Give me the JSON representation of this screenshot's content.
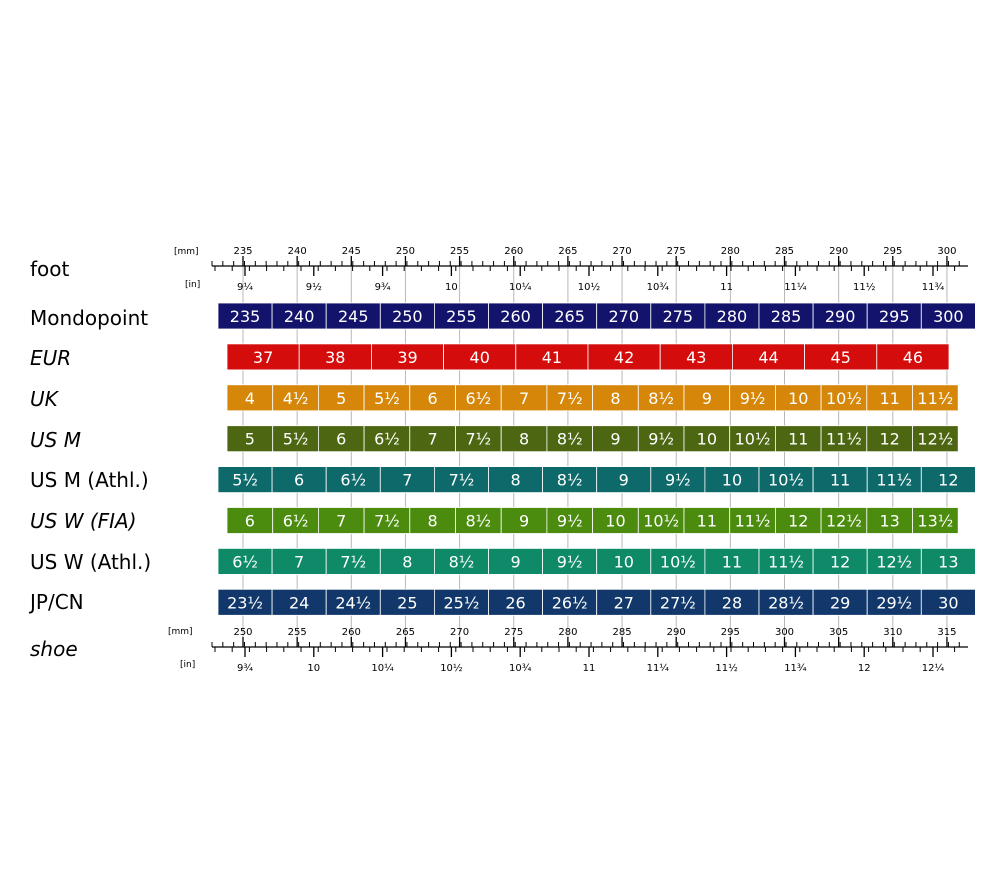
{
  "labels": {
    "foot": "foot",
    "shoe": "shoe",
    "mm": "[mm]",
    "in": "[in]"
  },
  "foot_scale": {
    "mm_labels": [
      "235",
      "240",
      "245",
      "250",
      "255",
      "260",
      "265",
      "270",
      "275",
      "280",
      "285",
      "290",
      "295",
      "300"
    ],
    "in_labels": [
      "9¼",
      "9½",
      "9¾",
      "10",
      "10¼",
      "10½",
      "10¾",
      "11",
      "11¼",
      "11½",
      "11¾"
    ]
  },
  "shoe_scale": {
    "mm_labels": [
      "250",
      "255",
      "260",
      "265",
      "270",
      "275",
      "280",
      "285",
      "290",
      "295",
      "300",
      "305",
      "310",
      "315"
    ],
    "in_labels": [
      "9¾",
      "10",
      "10¼",
      "10½",
      "10¾",
      "11",
      "11¼",
      "11½",
      "11¾",
      "12",
      "12¼"
    ]
  },
  "rows": [
    {
      "name": "Mondopoint",
      "italic": false,
      "color": "#13136b",
      "values": [
        "235",
        "240",
        "245",
        "250",
        "255",
        "260",
        "265",
        "270",
        "275",
        "280",
        "285",
        "290",
        "295",
        "300"
      ]
    },
    {
      "name": "EUR",
      "italic": true,
      "color": "#d40c0c",
      "values": [
        "37",
        "38",
        "39",
        "40",
        "41",
        "42",
        "43",
        "44",
        "45",
        "46"
      ]
    },
    {
      "name": "UK",
      "italic": true,
      "color": "#d6870a",
      "values": [
        "4",
        "4½",
        "5",
        "5½",
        "6",
        "6½",
        "7",
        "7½",
        "8",
        "8½",
        "9",
        "9½",
        "10",
        "10½",
        "11",
        "11½"
      ]
    },
    {
      "name": "US M",
      "italic": true,
      "color": "#4c6612",
      "values": [
        "5",
        "5½",
        "6",
        "6½",
        "7",
        "7½",
        "8",
        "8½",
        "9",
        "9½",
        "10",
        "10½",
        "11",
        "11½",
        "12",
        "12½"
      ]
    },
    {
      "name": "US M (Athl.)",
      "italic": false,
      "color": "#0e6a6a",
      "values": [
        "5½",
        "6",
        "6½",
        "7",
        "7½",
        "8",
        "8½",
        "9",
        "9½",
        "10",
        "10½",
        "11",
        "11½",
        "12"
      ]
    },
    {
      "name": "US W (FIA)",
      "italic": true,
      "color": "#4b8c0f",
      "values": [
        "6",
        "6½",
        "7",
        "7½",
        "8",
        "8½",
        "9",
        "9½",
        "10",
        "10½",
        "11",
        "11½",
        "12",
        "12½",
        "13",
        "13½"
      ]
    },
    {
      "name": "US W (Athl.)",
      "italic": false,
      "color": "#0f8a68",
      "values": [
        "6½",
        "7",
        "7½",
        "8",
        "8½",
        "9",
        "9½",
        "10",
        "10½",
        "11",
        "11½",
        "12",
        "12½",
        "13"
      ]
    },
    {
      "name": "JP/CN",
      "italic": false,
      "color": "#12386b",
      "values": [
        "23½",
        "24",
        "24½",
        "25",
        "25½",
        "26",
        "26½",
        "27",
        "27½",
        "28",
        "28½",
        "29",
        "29½",
        "30"
      ]
    }
  ]
}
